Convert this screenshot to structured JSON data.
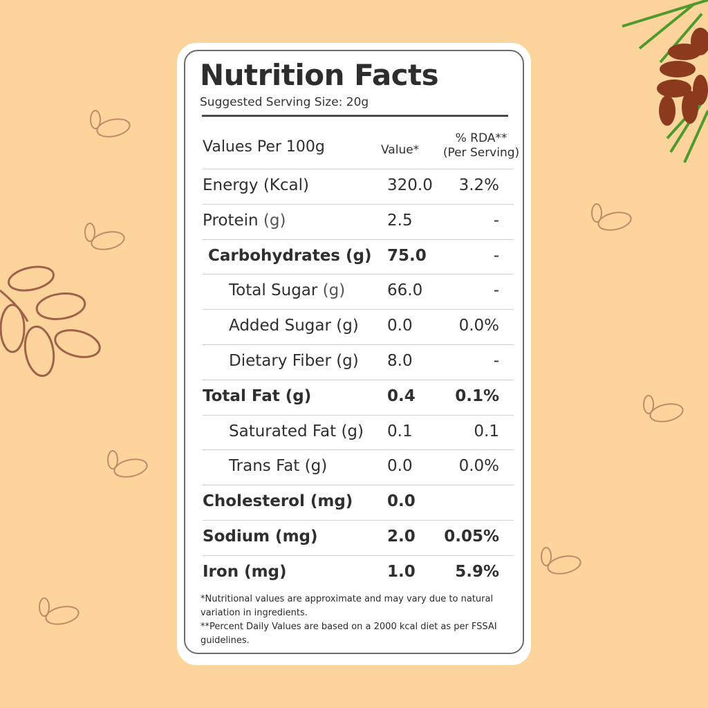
{
  "title": "Nutrition Facts",
  "serving_size": "Suggested Serving Size: 20g",
  "header": {
    "label": "Values Per 100g",
    "value": "Value*",
    "rda_line1": "% RDA**",
    "rda_line2": "(Per Serving)"
  },
  "rows": [
    {
      "label": "Energy (Kcal)",
      "unit": "",
      "value": "320.0",
      "rda": "3.2%"
    },
    {
      "label": "Protein",
      "unit": " (g)",
      "value": "2.5",
      "rda": "-"
    },
    {
      "label": "Carbohydrates (g)",
      "unit": "",
      "value": "75.0",
      "rda": "-"
    },
    {
      "label": "Total Sugar",
      "unit": " (g)",
      "value": "66.0",
      "rda": "-"
    },
    {
      "label": "Added Sugar (g)",
      "unit": "",
      "value": "0.0",
      "rda": "0.0%"
    },
    {
      "label": "Dietary Fiber (g)",
      "unit": "",
      "value": "8.0",
      "rda": "-"
    },
    {
      "label": "Total Fat (g)",
      "unit": "",
      "value": "0.4",
      "rda": "0.1%"
    },
    {
      "label": "Saturated Fat (g)",
      "unit": "",
      "value": "0.1",
      "rda": "0.1"
    },
    {
      "label": "Trans Fat (g)",
      "unit": "",
      "value": "0.0",
      "rda": "0.0%"
    },
    {
      "label": "Cholesterol (mg)",
      "unit": "",
      "value": "0.0",
      "rda": ""
    },
    {
      "label": "Sodium (mg)",
      "unit": "",
      "value": "2.0",
      "rda": "0.05%"
    },
    {
      "label": "Iron (mg)",
      "unit": "",
      "value": "1.0",
      "rda": "5.9%"
    }
  ],
  "footnotes": [
    "*Nutritional values are approximate and may vary due to natural variation in ingredients.",
    "**Percent Daily Values are based on a 2000 kcal diet as per FSSAI guidelines."
  ],
  "colors": {
    "background": "#fdd49b",
    "card": "#ffffff",
    "border": "#6d6d70",
    "date_outline": "#a0614a",
    "date_fill": "#8b3a1e",
    "leaf": "#4f9a2c"
  }
}
